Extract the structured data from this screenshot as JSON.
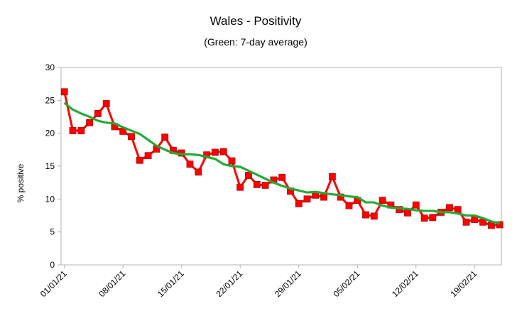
{
  "chart_data": {
    "type": "line",
    "title": "Wales - Positivity",
    "subtitle": "(Green: 7-day average)",
    "xlabel": "",
    "ylabel": "% positive",
    "ylim": [
      0,
      30
    ],
    "yticks": [
      0,
      5,
      10,
      15,
      20,
      25,
      30
    ],
    "grid": false,
    "x": [
      "01/01/21",
      "02/01/21",
      "03/01/21",
      "04/01/21",
      "05/01/21",
      "06/01/21",
      "07/01/21",
      "08/01/21",
      "09/01/21",
      "10/01/21",
      "11/01/21",
      "12/01/21",
      "13/01/21",
      "14/01/21",
      "15/01/21",
      "16/01/21",
      "17/01/21",
      "18/01/21",
      "19/01/21",
      "20/01/21",
      "21/01/21",
      "22/01/21",
      "23/01/21",
      "24/01/21",
      "25/01/21",
      "26/01/21",
      "27/01/21",
      "28/01/21",
      "29/01/21",
      "30/01/21",
      "31/01/21",
      "01/02/21",
      "02/02/21",
      "03/02/21",
      "04/02/21",
      "05/02/21",
      "06/02/21",
      "07/02/21",
      "08/02/21",
      "09/02/21",
      "10/02/21",
      "11/02/21",
      "12/02/21",
      "13/02/21",
      "14/02/21",
      "15/02/21",
      "16/02/21",
      "17/02/21",
      "18/02/21",
      "19/02/21",
      "20/02/21",
      "21/02/21",
      "22/02/21"
    ],
    "xtick_labels": [
      "01/01/21",
      "08/01/21",
      "15/01/21",
      "22/01/21",
      "29/01/21",
      "05/02/21",
      "12/02/21",
      "19/02/21"
    ],
    "xtick_indices": [
      0,
      7,
      14,
      21,
      28,
      35,
      42,
      49
    ],
    "series": [
      {
        "color": "#ff0000",
        "marker": "square",
        "values": [
          26.3,
          20.4,
          20.4,
          21.6,
          23.0,
          24.5,
          21.0,
          20.3,
          19.5,
          15.9,
          16.6,
          17.6,
          19.4,
          17.4,
          17.0,
          15.3,
          14.1,
          16.7,
          17.1,
          17.2,
          15.8,
          11.8,
          13.6,
          12.2,
          12.1,
          12.9,
          13.3,
          11.2,
          9.3,
          10.0,
          10.6,
          10.3,
          13.4,
          10.3,
          9.0,
          9.8,
          7.6,
          7.4,
          9.8,
          9.1,
          8.4,
          7.9,
          9.1,
          7.1,
          7.2,
          8.0,
          8.7,
          8.4,
          6.5,
          6.9,
          6.5,
          6.0,
          6.1
        ]
      },
      {
        "color": "#22aa33",
        "marker": "none",
        "values": [
          24.6,
          23.6,
          23.0,
          22.5,
          21.9,
          21.6,
          21.5,
          20.9,
          20.4,
          19.9,
          19.0,
          18.1,
          17.5,
          17.0,
          16.8,
          16.8,
          16.7,
          16.4,
          16.1,
          15.3,
          15.0,
          14.9,
          14.3,
          13.7,
          13.1,
          12.5,
          12.0,
          11.6,
          11.3,
          11.0,
          11.1,
          10.9,
          10.7,
          10.6,
          10.4,
          10.3,
          9.5,
          9.5,
          9.0,
          8.7,
          8.6,
          8.5,
          8.3,
          8.2,
          8.2,
          8.0,
          8.0,
          7.8,
          7.5,
          7.5,
          7.1,
          6.6,
          6.3
        ]
      }
    ]
  }
}
